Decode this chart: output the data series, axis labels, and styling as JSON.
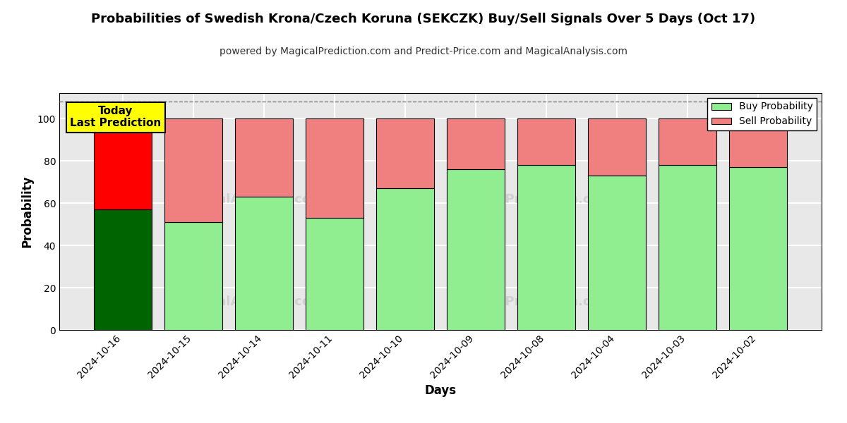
{
  "title": "Probabilities of Swedish Krona/Czech Koruna (SEKCZK) Buy/Sell Signals Over 5 Days (Oct 17)",
  "subtitle": "powered by MagicalPrediction.com and Predict-Price.com and MagicalAnalysis.com",
  "xlabel": "Days",
  "ylabel": "Probability",
  "categories": [
    "2024-10-16",
    "2024-10-15",
    "2024-10-14",
    "2024-10-11",
    "2024-10-10",
    "2024-10-09",
    "2024-10-08",
    "2024-10-04",
    "2024-10-03",
    "2024-10-02"
  ],
  "buy_values": [
    57,
    51,
    63,
    53,
    67,
    76,
    78,
    73,
    78,
    77
  ],
  "sell_values": [
    43,
    49,
    37,
    47,
    33,
    24,
    22,
    27,
    22,
    23
  ],
  "today_buy_color": "#006400",
  "today_sell_color": "#FF0000",
  "normal_buy_color": "#90EE90",
  "normal_sell_color": "#F08080",
  "today_annotation_bg": "#FFFF00",
  "today_annotation_text": "Today\nLast Prediction",
  "ylim": [
    0,
    112
  ],
  "dashed_line_y": 108,
  "legend_buy_label": "Buy Probability",
  "legend_sell_label": "Sell Probability",
  "background_color": "#ffffff",
  "plot_bg_color": "#e8e8e8",
  "grid_color": "#ffffff",
  "title_fontsize": 13,
  "subtitle_fontsize": 10
}
